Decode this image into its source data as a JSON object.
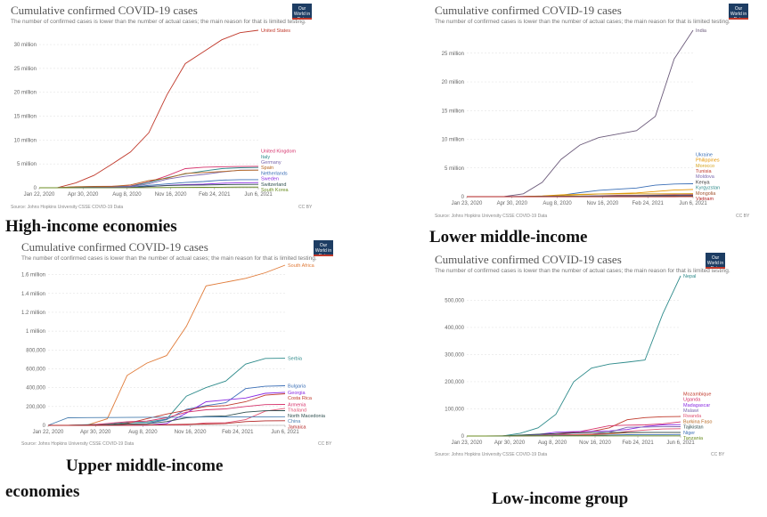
{
  "common": {
    "title": "Cumulative confirmed COVID-19 cases",
    "subtitle": "The number of confirmed cases is lower than the number of actual cases; the main reason for that is limited testing.",
    "source": "Source: Johns Hopkins University CSSE COVID-19 Data",
    "license": "CC BY",
    "logo_text": "Our World in Data",
    "logo_color": "#1d3d63"
  },
  "captions": {
    "high": "High-income economies",
    "lower_middle": "Lower middle-income",
    "upper_middle_line1": "Upper middle-income",
    "upper_middle_line2": "economies",
    "low": "Low-income group"
  },
  "chart_data": [
    {
      "id": "high",
      "type": "line",
      "title": "Cumulative confirmed COVID-19 cases",
      "x_ticks": [
        "Jan 22, 2020",
        "Apr 30, 2020",
        "Aug 8, 2020",
        "Nov 16, 2020",
        "Feb 24, 2021",
        "Jun 6, 2021"
      ],
      "y_ticks": [
        0,
        5000000,
        10000000,
        15000000,
        20000000,
        25000000,
        30000000
      ],
      "y_tick_labels": [
        "0",
        "5 million",
        "10 million",
        "15 million",
        "20 million",
        "25 million",
        "30 million"
      ],
      "ylim": [
        0,
        33000000
      ],
      "grid": true,
      "legend": "right",
      "series": [
        {
          "name": "United States",
          "color": "#c0392b",
          "values": [
            0,
            20000,
            1000000,
            2600000,
            5000000,
            7500000,
            11500000,
            19500000,
            26000000,
            28500000,
            31000000,
            32500000,
            33000000
          ]
        },
        {
          "name": "United Kingdom",
          "color": "#d6336c",
          "values": [
            0,
            0,
            150000,
            300000,
            320000,
            400000,
            1200000,
            2500000,
            4000000,
            4300000,
            4400000,
            4450000,
            4500000
          ]
        },
        {
          "name": "Italy",
          "color": "#2e8b8b",
          "values": [
            0,
            100,
            200000,
            240000,
            250000,
            300000,
            1100000,
            2100000,
            2900000,
            3500000,
            4000000,
            4200000,
            4250000
          ]
        },
        {
          "name": "Germany",
          "color": "#7b68ae",
          "values": [
            0,
            0,
            160000,
            190000,
            200000,
            250000,
            800000,
            1800000,
            2400000,
            2800000,
            3300000,
            3700000,
            3700000
          ]
        },
        {
          "name": "Spain",
          "color": "#b5651d",
          "values": [
            0,
            0,
            220000,
            250000,
            300000,
            600000,
            1500000,
            2000000,
            3000000,
            3200000,
            3400000,
            3650000,
            3700000
          ]
        },
        {
          "name": "Netherlands",
          "color": "#3b6fb6",
          "values": [
            0,
            0,
            40000,
            50000,
            60000,
            100000,
            500000,
            800000,
            1100000,
            1300000,
            1600000,
            1700000,
            1700000
          ]
        },
        {
          "name": "Sweden",
          "color": "#8a2be2",
          "values": [
            0,
            0,
            20000,
            50000,
            80000,
            90000,
            250000,
            500000,
            650000,
            750000,
            950000,
            1050000,
            1080000
          ]
        },
        {
          "name": "Switzerland",
          "color": "#2f4f4f",
          "values": [
            0,
            0,
            30000,
            31000,
            35000,
            50000,
            300000,
            450000,
            550000,
            570000,
            650000,
            690000,
            700000
          ]
        },
        {
          "name": "South Korea",
          "color": "#6b8e23",
          "values": [
            0,
            0,
            10000,
            11000,
            13000,
            17000,
            28000,
            50000,
            80000,
            90000,
            110000,
            140000,
            145000
          ]
        }
      ]
    },
    {
      "id": "lower_middle",
      "type": "line",
      "title": "Cumulative confirmed COVID-19 cases",
      "x_ticks": [
        "Jan 23, 2020",
        "Apr 30, 2020",
        "Aug 8, 2020",
        "Nov 16, 2020",
        "Feb 24, 2021",
        "Jun 6, 2021"
      ],
      "y_ticks": [
        0,
        5000000,
        10000000,
        15000000,
        20000000,
        25000000
      ],
      "y_tick_labels": [
        "0",
        "5 million",
        "10 million",
        "15 million",
        "20 million",
        "25 million"
      ],
      "ylim": [
        0,
        29000000
      ],
      "grid": true,
      "legend": "right",
      "series": [
        {
          "name": "India",
          "color": "#6c5b7b",
          "values": [
            0,
            0,
            30000,
            500000,
            2500000,
            6500000,
            9000000,
            10300000,
            10900000,
            11500000,
            14000000,
            24000000,
            29000000
          ]
        },
        {
          "name": "Ukraine",
          "color": "#3b6fb6",
          "values": [
            0,
            0,
            8000,
            40000,
            80000,
            250000,
            700000,
            1100000,
            1300000,
            1500000,
            2000000,
            2200000,
            2250000
          ]
        },
        {
          "name": "Philippines",
          "color": "#e59400",
          "values": [
            0,
            0,
            8000,
            30000,
            120000,
            330000,
            400000,
            480000,
            550000,
            650000,
            900000,
            1150000,
            1250000
          ]
        },
        {
          "name": "Morocco",
          "color": "#d4a017",
          "values": [
            0,
            0,
            4000,
            10000,
            40000,
            150000,
            330000,
            450000,
            480000,
            490000,
            500000,
            515000,
            520000
          ]
        },
        {
          "name": "Tunisia",
          "color": "#c0392b",
          "values": [
            0,
            0,
            900,
            1100,
            1500,
            20000,
            90000,
            170000,
            230000,
            240000,
            280000,
            340000,
            360000
          ]
        },
        {
          "name": "Moldova",
          "color": "#7b68ae",
          "values": [
            0,
            0,
            3500,
            15000,
            30000,
            60000,
            90000,
            140000,
            170000,
            200000,
            240000,
            255000,
            256000
          ]
        },
        {
          "name": "Kenya",
          "color": "#333333",
          "values": [
            0,
            0,
            400,
            3000,
            25000,
            40000,
            70000,
            95000,
            100000,
            110000,
            150000,
            170000,
            172000
          ]
        },
        {
          "name": "Kyrgyzstan",
          "color": "#2e8b8b",
          "values": [
            0,
            0,
            700,
            5000,
            40000,
            48000,
            70000,
            80000,
            85000,
            86000,
            90000,
            100000,
            105000
          ]
        },
        {
          "name": "Mongolia",
          "color": "#a0522d",
          "values": [
            0,
            0,
            30,
            200,
            300,
            350,
            900,
            1200,
            2000,
            3000,
            15000,
            50000,
            60000
          ]
        },
        {
          "name": "Vietnam",
          "color": "#b22222",
          "values": [
            0,
            0,
            270,
            330,
            800,
            1100,
            1300,
            1450,
            1500,
            2400,
            2800,
            5000,
            9000
          ]
        }
      ]
    },
    {
      "id": "upper_middle",
      "type": "line",
      "title": "Cumulative confirmed COVID-19 cases",
      "x_ticks": [
        "Jan 22, 2020",
        "Apr 30, 2020",
        "Aug 8, 2020",
        "Nov 16, 2020",
        "Feb 24, 2021",
        "Jun 6, 2021"
      ],
      "y_ticks": [
        0,
        200000,
        400000,
        600000,
        800000,
        1000000,
        1200000,
        1400000,
        1600000
      ],
      "y_tick_labels": [
        "0",
        "200,000",
        "400,000",
        "600,000",
        "800,000",
        "1 million",
        "1.2 million",
        "1.4 million",
        "1.6 million"
      ],
      "ylim": [
        0,
        1700000
      ],
      "grid": true,
      "legend": "right",
      "series": [
        {
          "name": "South Africa",
          "color": "#e07b39",
          "values": [
            0,
            0,
            4000,
            70000,
            530000,
            660000,
            740000,
            1050000,
            1480000,
            1520000,
            1560000,
            1620000,
            1700000
          ]
        },
        {
          "name": "Serbia",
          "color": "#2e8b8b",
          "values": [
            0,
            0,
            8000,
            13000,
            28000,
            35000,
            65000,
            310000,
            400000,
            470000,
            650000,
            710000,
            712000
          ]
        },
        {
          "name": "Bulgaria",
          "color": "#3b6fb6",
          "values": [
            0,
            0,
            1500,
            3000,
            12000,
            20000,
            60000,
            170000,
            210000,
            240000,
            390000,
            415000,
            420000
          ]
        },
        {
          "name": "Georgia",
          "color": "#8a2be2",
          "values": [
            0,
            0,
            500,
            800,
            1200,
            1500,
            20000,
            130000,
            250000,
            270000,
            290000,
            340000,
            350000
          ]
        },
        {
          "name": "Costa Rica",
          "color": "#c0392b",
          "values": [
            0,
            0,
            600,
            2000,
            20000,
            70000,
            120000,
            160000,
            200000,
            210000,
            250000,
            320000,
            335000
          ]
        },
        {
          "name": "Armenia",
          "color": "#d6336c",
          "values": [
            0,
            0,
            2000,
            20000,
            38000,
            45000,
            80000,
            140000,
            165000,
            175000,
            200000,
            220000,
            222000
          ]
        },
        {
          "name": "Thailand",
          "color": "#e05575",
          "values": [
            0,
            0,
            3000,
            3100,
            3300,
            3500,
            4000,
            5000,
            26000,
            27000,
            60000,
            150000,
            180000
          ]
        },
        {
          "name": "North Macedonia",
          "color": "#2f4f4f",
          "values": [
            0,
            0,
            1500,
            5000,
            13000,
            17000,
            40000,
            80000,
            95000,
            100000,
            140000,
            155000,
            156000
          ]
        },
        {
          "name": "China",
          "color": "#4a7fb0",
          "values": [
            0,
            80000,
            82500,
            83000,
            84500,
            85500,
            86000,
            87000,
            89000,
            90000,
            90500,
            91000,
            91500
          ]
        },
        {
          "name": "Jamaica",
          "color": "#b22222",
          "values": [
            0,
            0,
            400,
            700,
            900,
            3000,
            8000,
            11000,
            14000,
            20000,
            40000,
            48000,
            49000
          ]
        }
      ]
    },
    {
      "id": "low",
      "type": "line",
      "title": "Cumulative confirmed COVID-19 cases",
      "x_ticks": [
        "Jan 23, 2020",
        "Apr 30, 2020",
        "Aug 8, 2020",
        "Nov 16, 2020",
        "Feb 24, 2021",
        "Jun 6, 2021"
      ],
      "y_ticks": [
        0,
        100000,
        200000,
        300000,
        400000,
        500000
      ],
      "y_tick_labels": [
        "0",
        "100,000",
        "200,000",
        "300,000",
        "400,000",
        "500,000"
      ],
      "ylim": [
        0,
        590000
      ],
      "grid": true,
      "legend": "right",
      "series": [
        {
          "name": "Nepal",
          "color": "#2e8b8b",
          "values": [
            0,
            0,
            60,
            10000,
            30000,
            80000,
            200000,
            250000,
            265000,
            272000,
            280000,
            450000,
            590000
          ]
        },
        {
          "name": "Mozambique",
          "color": "#c0392b",
          "values": [
            0,
            0,
            80,
            900,
            3000,
            9000,
            14000,
            17000,
            30000,
            60000,
            68000,
            71000,
            72000
          ]
        },
        {
          "name": "Uganda",
          "color": "#d6336c",
          "values": [
            0,
            0,
            80,
            900,
            1200,
            5000,
            12000,
            25000,
            38000,
            40000,
            41000,
            45000,
            52000
          ]
        },
        {
          "name": "Madagascar",
          "color": "#8a2be2",
          "values": [
            0,
            0,
            120,
            1000,
            6000,
            14000,
            16000,
            17500,
            19000,
            24000,
            35000,
            41000,
            42000
          ]
        },
        {
          "name": "Malawi",
          "color": "#7b68ae",
          "values": [
            0,
            0,
            30,
            500,
            3500,
            5000,
            5800,
            6200,
            14000,
            32000,
            33000,
            34000,
            34500
          ]
        },
        {
          "name": "Rwanda",
          "color": "#e05575",
          "values": [
            0,
            0,
            150,
            300,
            1500,
            3500,
            5000,
            6500,
            9000,
            17000,
            22000,
            26000,
            27000
          ]
        },
        {
          "name": "Burkina Faso",
          "color": "#b5651d",
          "values": [
            0,
            0,
            600,
            800,
            1100,
            1500,
            2500,
            4000,
            8000,
            12000,
            13000,
            13400,
            13500
          ]
        },
        {
          "name": "Tajikistan",
          "color": "#2f4f4f",
          "values": [
            0,
            0,
            0,
            3500,
            7000,
            9000,
            11000,
            12500,
            13300,
            13300,
            13300,
            13300,
            13300
          ]
        },
        {
          "name": "Niger",
          "color": "#3b6fb6",
          "values": [
            0,
            0,
            500,
            900,
            1100,
            1150,
            1200,
            1500,
            3500,
            4800,
            5100,
            5400,
            5450
          ]
        },
        {
          "name": "Tanzania",
          "color": "#6b8e23",
          "values": [
            0,
            0,
            300,
            509,
            509,
            509,
            509,
            509,
            509,
            509,
            509,
            509,
            509
          ]
        }
      ]
    }
  ]
}
